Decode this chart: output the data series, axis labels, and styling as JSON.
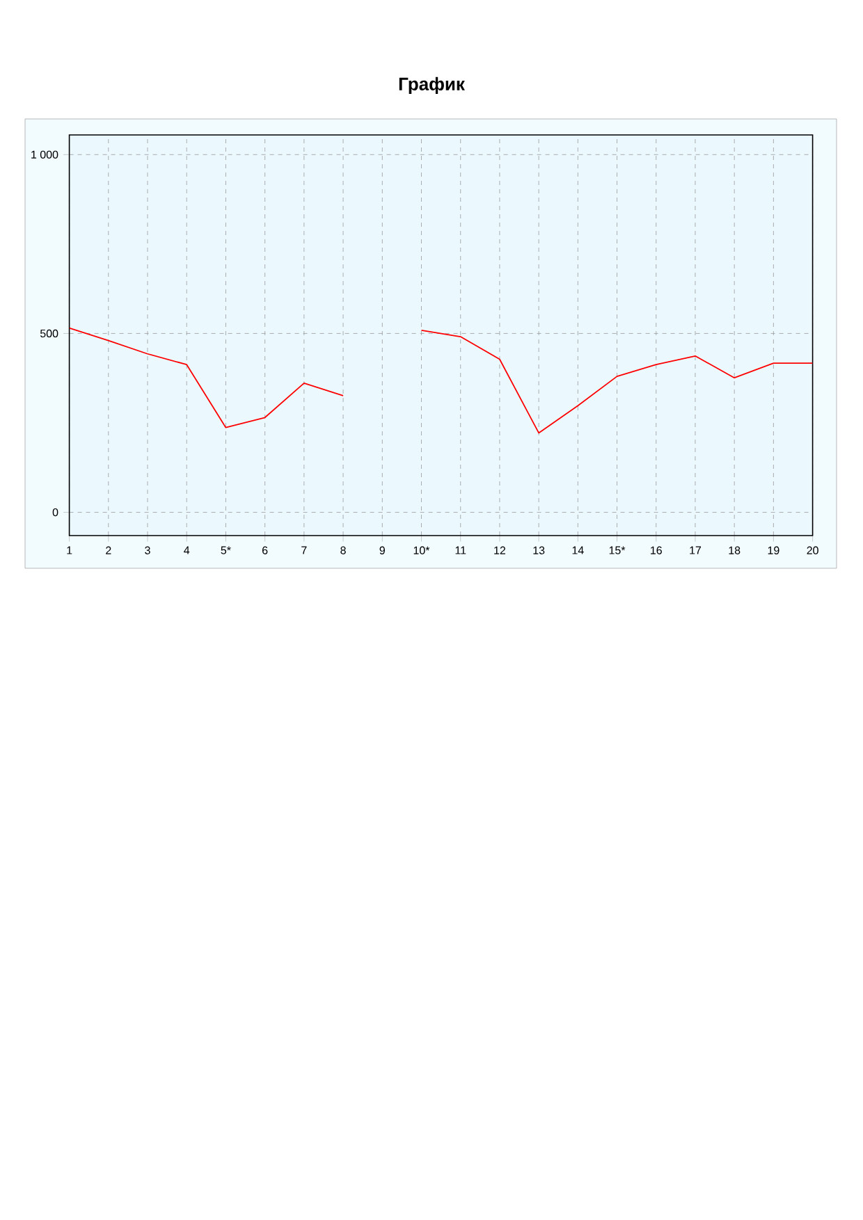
{
  "chart_data": {
    "type": "line",
    "title": "График",
    "categories": [
      "1",
      "2",
      "3",
      "4",
      "5*",
      "6",
      "7",
      "8",
      "9",
      "10*",
      "11",
      "12",
      "13",
      "14",
      "15*",
      "16",
      "17",
      "18",
      "19",
      "20"
    ],
    "series": [
      {
        "color": "#ff0000",
        "values": [
          515,
          480,
          443,
          413,
          237,
          265,
          361,
          326,
          null,
          509,
          491,
          428,
          222,
          298,
          380,
          413,
          437,
          376,
          417,
          417
        ]
      }
    ],
    "ylim": [
      -65,
      1055
    ],
    "yticks": [
      0,
      500,
      {
        "value": 1000,
        "label": "1 000"
      }
    ],
    "grid": true
  }
}
